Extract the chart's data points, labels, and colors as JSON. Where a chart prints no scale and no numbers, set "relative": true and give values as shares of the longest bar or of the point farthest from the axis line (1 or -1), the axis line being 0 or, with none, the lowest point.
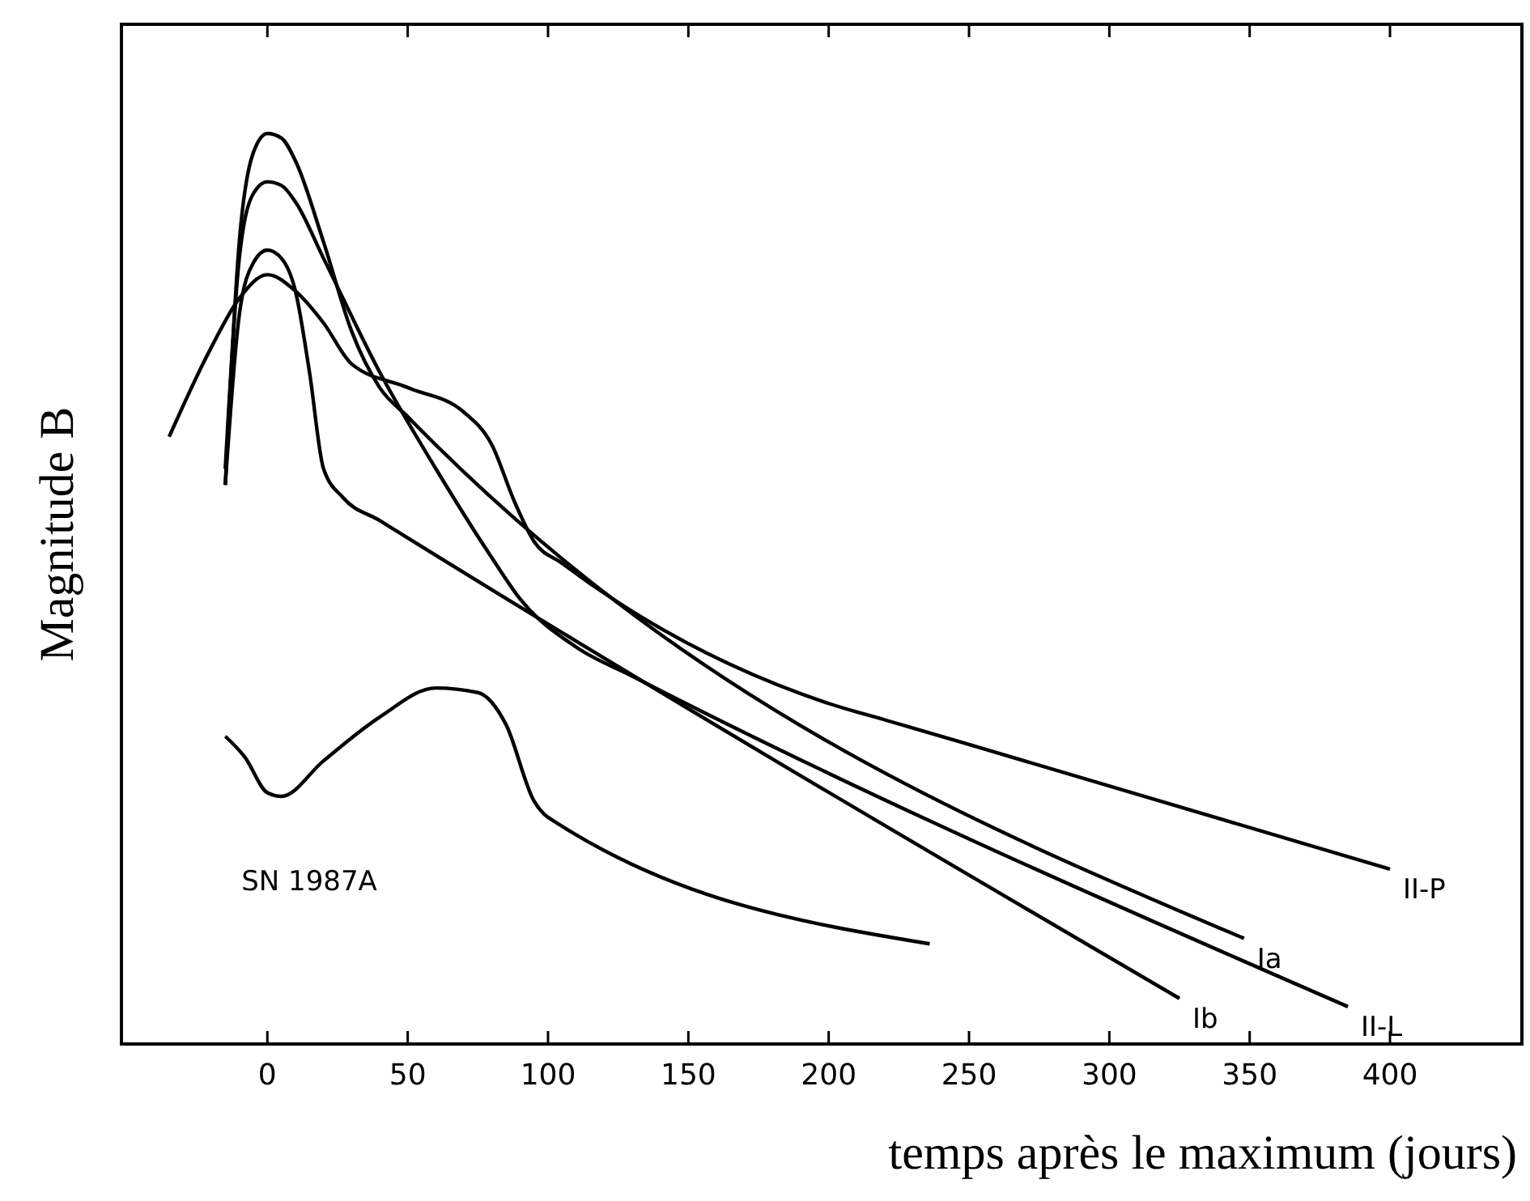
{
  "chart_data": {
    "type": "line",
    "relative": true,
    "xlabel": "temps après le maximum (jours)",
    "ylabel": "Magnitude B",
    "xlim": [
      -52,
      447
    ],
    "xticks": [
      0,
      50,
      100,
      150,
      200,
      250,
      300,
      350,
      400
    ],
    "grid": false,
    "legend": false,
    "line_style": "solid",
    "series": [
      {
        "name": "Ia",
        "color": "#000000",
        "x": [
          -15,
          -10,
          -5,
          0,
          5,
          10,
          20,
          30,
          40,
          50,
          348
        ],
        "values": [
          0.614,
          0.881,
          0.979,
          1.0,
          0.995,
          0.97,
          0.881,
          0.783,
          0.721,
          0.689,
          0.116
        ]
      },
      {
        "name": "II-L",
        "color": "#000000",
        "x": [
          -15,
          -10,
          -5,
          0,
          5,
          10,
          20,
          40,
          60,
          80,
          90,
          110,
          130,
          385
        ],
        "values": [
          0.632,
          0.863,
          0.934,
          0.947,
          0.943,
          0.925,
          0.863,
          0.738,
          0.632,
          0.534,
          0.489,
          0.436,
          0.404,
          0.041
        ]
      },
      {
        "name": "II-P",
        "color": "#000000",
        "x": [
          -35,
          -20,
          -10,
          0,
          10,
          20,
          30,
          50,
          70,
          80,
          88,
          95,
          105,
          200,
          220,
          250,
          400
        ],
        "values": [
          0.667,
          0.765,
          0.819,
          0.845,
          0.827,
          0.792,
          0.747,
          0.721,
          0.694,
          0.658,
          0.596,
          0.552,
          0.528,
          0.374,
          0.356,
          0.329,
          0.192
        ]
      },
      {
        "name": "Ib",
        "color": "#000000",
        "x": [
          -15,
          -10,
          -5,
          0,
          5,
          10,
          15,
          20,
          27,
          40,
          325
        ],
        "values": [
          0.614,
          0.801,
          0.858,
          0.872,
          0.863,
          0.827,
          0.738,
          0.632,
          0.6,
          0.575,
          0.05
        ]
      },
      {
        "name": "SN 1987A",
        "color": "#000000",
        "x": [
          -15,
          -8,
          0,
          5,
          20,
          40,
          60,
          75,
          85,
          95,
          100,
          236
        ],
        "values": [
          0.338,
          0.315,
          0.276,
          0.272,
          0.311,
          0.359,
          0.391,
          0.386,
          0.351,
          0.267,
          0.249,
          0.11
        ]
      }
    ]
  }
}
